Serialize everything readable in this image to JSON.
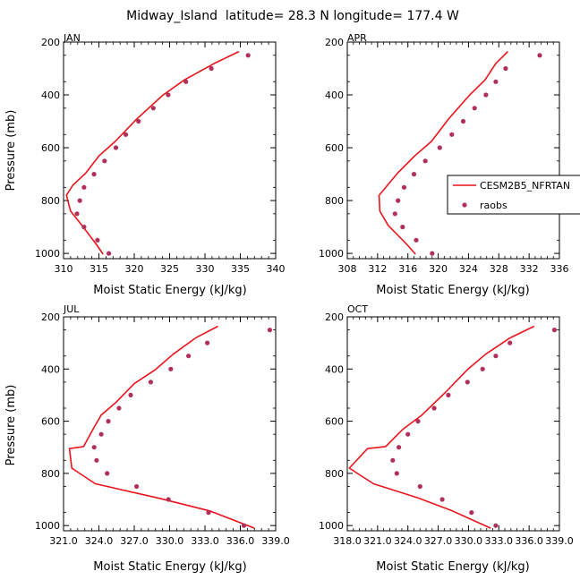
{
  "page": {
    "title": "Midway_Island  latitude= 28.3 N longitude= 177.4 W"
  },
  "legend": {
    "model_label": "CESM2B5_NFRTAN",
    "obs_label": "raobs"
  },
  "colors": {
    "model_line": "#e8141c",
    "obs_marker": "#b0305a",
    "axis": "#000000"
  },
  "chart_data": [
    {
      "type": "line",
      "panel": "JAN",
      "xlabel": "Moist Static Energy (kJ/kg)",
      "ylabel": "Pressure (mb)",
      "xlim": [
        310,
        340
      ],
      "ylim": [
        1020,
        200
      ],
      "xticks": [
        310,
        315,
        320,
        325,
        330,
        335,
        340
      ],
      "xtick_labels": [
        "310",
        "315",
        "320",
        "325",
        "330",
        "335",
        "340"
      ],
      "yticks": [
        200,
        400,
        600,
        800,
        1000
      ],
      "ytick_labels": [
        "200",
        "400",
        "600",
        "800",
        "1000"
      ],
      "series": [
        {
          "name": "CESM2B5_NFRTAN",
          "style": "line",
          "x": [
            334.8,
            331.3,
            327.1,
            324.0,
            320.4,
            317.3,
            315.0,
            313.1,
            311.3,
            310.4,
            311.0,
            312.6,
            314.6,
            315.6
          ],
          "y": [
            236,
            281,
            343,
            402,
            490,
            576,
            631,
            697,
            742,
            780,
            840,
            894,
            964,
            1003
          ]
        },
        {
          "name": "raobs",
          "style": "marker",
          "x": [
            336.1,
            330.9,
            327.3,
            324.8,
            322.7,
            320.6,
            318.8,
            317.4,
            315.8,
            314.3,
            312.9,
            312.3,
            311.9,
            312.9,
            314.8,
            316.4
          ],
          "y": [
            250,
            300,
            350,
            400,
            450,
            500,
            550,
            600,
            650,
            700,
            750,
            800,
            850,
            900,
            950,
            1000
          ]
        }
      ]
    },
    {
      "type": "line",
      "panel": "APR",
      "xlabel": "Moist Static Energy (kJ/kg)",
      "ylabel": "",
      "xlim": [
        308,
        336
      ],
      "ylim": [
        1020,
        200
      ],
      "xticks": [
        308,
        312,
        316,
        320,
        324,
        328,
        332,
        336
      ],
      "xtick_labels": [
        "308",
        "312",
        "316",
        "320",
        "324",
        "328",
        "332",
        "336"
      ],
      "yticks": [
        200,
        400,
        600,
        800,
        1000
      ],
      "ytick_labels": [
        "200",
        "400",
        "600",
        "800",
        "1000"
      ],
      "series": [
        {
          "name": "CESM2B5_NFRTAN",
          "style": "line",
          "x": [
            329.2,
            327.6,
            326.2,
            324.1,
            321.4,
            319.1,
            316.9,
            314.6,
            312.2,
            312.3,
            313.4,
            315.8,
            317.0
          ],
          "y": [
            236,
            281,
            343,
            402,
            490,
            576,
            631,
            697,
            780,
            840,
            894,
            964,
            1003
          ]
        },
        {
          "name": "raobs",
          "style": "marker",
          "x": [
            333.4,
            328.9,
            327.6,
            326.3,
            324.8,
            323.3,
            321.8,
            320.2,
            318.3,
            316.8,
            315.5,
            314.7,
            314.3,
            315.3,
            317.1,
            319.2
          ],
          "y": [
            250,
            300,
            350,
            400,
            450,
            500,
            550,
            600,
            650,
            700,
            750,
            800,
            850,
            900,
            950,
            1000
          ]
        }
      ]
    },
    {
      "type": "line",
      "panel": "JUL",
      "xlabel": "Moist Static Energy (kJ/kg)",
      "ylabel": "Pressure (mb)",
      "xlim": [
        321,
        339
      ],
      "ylim": [
        1020,
        200
      ],
      "xticks": [
        321,
        324,
        327,
        330,
        333,
        336,
        339
      ],
      "xtick_labels": [
        "321.0",
        "324.0",
        "327.0",
        "330.0",
        "333.0",
        "336.0",
        "339.0"
      ],
      "yticks": [
        200,
        400,
        600,
        800,
        1000
      ],
      "ytick_labels": [
        "200",
        "400",
        "600",
        "800",
        "1000"
      ],
      "series": [
        {
          "name": "CESM2B5_NFRTAN",
          "style": "line",
          "x": [
            334.1,
            332.2,
            330.3,
            328.8,
            327.0,
            325.4,
            324.2,
            323.5,
            322.7,
            321.5,
            321.7,
            323.7,
            329.0,
            333.4,
            337.2
          ],
          "y": [
            236,
            281,
            343,
            402,
            456,
            530,
            576,
            631,
            697,
            705,
            780,
            840,
            894,
            944,
            1010
          ]
        },
        {
          "name": "raobs",
          "style": "marker",
          "x": [
            338.5,
            333.2,
            331.6,
            330.1,
            328.4,
            326.7,
            325.7,
            324.8,
            324.2,
            323.6,
            323.8,
            324.7,
            327.2,
            329.9,
            333.3,
            336.3
          ],
          "y": [
            250,
            300,
            350,
            400,
            450,
            500,
            550,
            600,
            650,
            700,
            750,
            800,
            850,
            900,
            950,
            1000
          ]
        }
      ]
    },
    {
      "type": "line",
      "panel": "OCT",
      "xlabel": "Moist Static Energy (kJ/kg)",
      "ylabel": "",
      "xlim": [
        318,
        339
      ],
      "ylim": [
        1020,
        200
      ],
      "xticks": [
        318,
        321,
        324,
        327,
        330,
        333,
        336,
        339
      ],
      "xtick_labels": [
        "318.0",
        "321.0",
        "324.0",
        "327.0",
        "330.0",
        "333.0",
        "336.0",
        "339.0"
      ],
      "yticks": [
        200,
        400,
        600,
        800,
        1000
      ],
      "ytick_labels": [
        "200",
        "400",
        "600",
        "800",
        "1000"
      ],
      "series": [
        {
          "name": "CESM2B5_NFRTAN",
          "style": "line",
          "x": [
            336.5,
            334.1,
            331.7,
            329.9,
            327.7,
            325.4,
            323.5,
            321.8,
            320.0,
            318.2,
            320.6,
            325.0,
            328.4,
            332.2
          ],
          "y": [
            236,
            281,
            343,
            402,
            490,
            576,
            631,
            697,
            705,
            780,
            840,
            894,
            944,
            1010
          ]
        },
        {
          "name": "raobs",
          "style": "marker",
          "x": [
            338.5,
            334.1,
            332.7,
            331.4,
            329.9,
            328.0,
            326.6,
            325.0,
            324.0,
            323.1,
            322.5,
            322.9,
            325.2,
            327.4,
            330.3,
            332.7
          ],
          "y": [
            250,
            300,
            350,
            400,
            450,
            500,
            550,
            600,
            650,
            700,
            750,
            800,
            850,
            900,
            950,
            1000
          ]
        }
      ]
    }
  ]
}
